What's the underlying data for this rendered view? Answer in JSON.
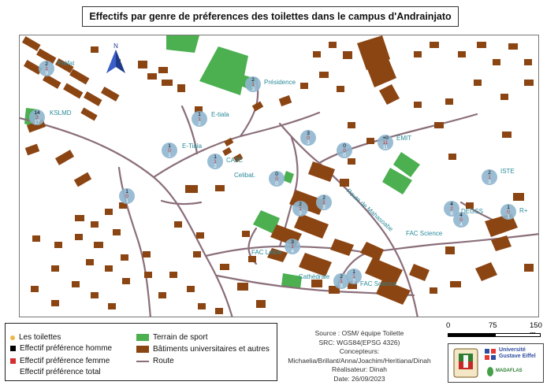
{
  "title": "Effectifs par genre de préferences des toilettes dans le campus d'Andrainjato",
  "north": "N",
  "colors": {
    "building": "#8b4513",
    "sport": "#4caf50",
    "road": "#8a6e7a",
    "circle": "#8fb6cf",
    "homme": "#000000",
    "femme": "#d32f2f",
    "total": "#ffffff"
  },
  "places": [
    {
      "name": "Préfat",
      "homme": "2",
      "femme": "1",
      "total": "3"
    },
    {
      "name": "KSLMD",
      "homme": "14",
      "femme": "3",
      "total": "17"
    },
    {
      "name": "Présidence",
      "homme": "2",
      "femme": "1",
      "total": "3"
    },
    {
      "name": "E-tiala",
      "homme": "1",
      "femme": "1",
      "total": "2"
    },
    {
      "name": "E-Tiala",
      "homme": "1",
      "femme": "0",
      "total": "1"
    },
    {
      "name": "CA2E",
      "homme": "1",
      "femme": "1",
      "total": "2"
    },
    {
      "name": "Celibat.",
      "homme": "0",
      "femme": "0",
      "total": "0"
    },
    {
      "name": "",
      "homme": "1",
      "femme": "0",
      "total": "1"
    },
    {
      "name": "",
      "homme": "2",
      "femme": "1",
      "total": "3"
    },
    {
      "name": "",
      "homme": "2",
      "femme": "1",
      "total": "3"
    },
    {
      "name": "EMIT",
      "homme": "+0",
      "femme": "11",
      "total": "11"
    },
    {
      "name": "",
      "homme": "0",
      "femme": "0",
      "total": "0"
    },
    {
      "name": "",
      "homme": "3",
      "femme": "0",
      "total": "3"
    },
    {
      "name": "ISTE",
      "homme": "2",
      "femme": "1",
      "total": "3"
    },
    {
      "name": "DEGSS",
      "homme": "4",
      "femme": "2",
      "total": "6"
    },
    {
      "name": "R+",
      "homme": "1",
      "femme": "0",
      "total": "1"
    },
    {
      "name": "FAC Science",
      "homme": "1",
      "femme": "1",
      "total": "2"
    },
    {
      "name": "FAC Lettre",
      "homme": "3",
      "femme": "1",
      "total": "4"
    },
    {
      "name": "Cathédrale",
      "homme": "2",
      "femme": "1",
      "total": "3"
    },
    {
      "name": "FAC Science",
      "homme": "4",
      "femme": "0",
      "total": "4"
    }
  ],
  "road_label": "Route de Mahasoabe",
  "legend": {
    "toilettes": "Les toilettes",
    "homme": "Effectif préférence homme",
    "femme": "Effectif préférence femme",
    "total": "Effectif préférence total",
    "sport": "Terrain de sport",
    "batiments": "Bâtiments universitaires et autres",
    "route": "Route"
  },
  "credits": {
    "source": "Source : OSM/ équipe Toilette",
    "src": "SRC: WGS84(EPSG 4326)",
    "concepteurs_label": "Concepteurs:",
    "concepteurs": "Michaelia/Brillant/Anna/Joachim/Heritiana/Dinah",
    "realisateur": "Réalisateur: Dinah",
    "date": "Date: 26/09/2023"
  },
  "scale": {
    "t0": "0",
    "t1": "75",
    "t2": "150 m"
  },
  "logos": {
    "univ_line1": "Université",
    "univ_line2": "Gustave Eiffel",
    "madaflas": "MADAFLAS"
  }
}
